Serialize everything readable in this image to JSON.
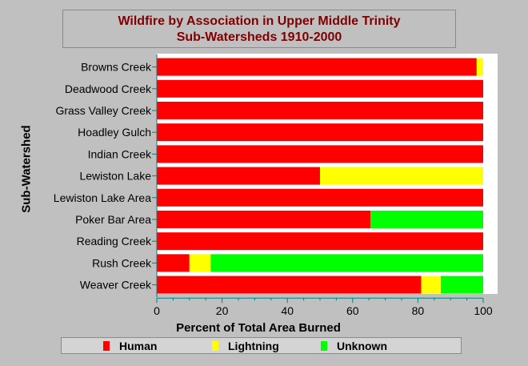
{
  "chart_data": {
    "type": "bar",
    "orientation": "horizontal",
    "stacked": true,
    "title": [
      "Wildfire by Association in Upper Middle Trinity",
      "Sub-Watersheds 1910-2000"
    ],
    "xlabel": "Percent of Total Area Burned",
    "ylabel": "Sub-Watershed",
    "xlim": [
      0,
      100
    ],
    "xticks": [
      "0",
      "20",
      "40",
      "60",
      "80",
      "100"
    ],
    "legend_position": "bottom",
    "categories": [
      "Browns Creek",
      "Deadwood Creek",
      "Grass Valley Creek",
      "Hoadley Gulch",
      "Indian Creek",
      "Lewiston Lake",
      "Lewiston Lake Area",
      "Poker Bar Area",
      "Reading Creek",
      "Rush Creek",
      "Weaver Creek"
    ],
    "series": [
      {
        "name": "Human",
        "color": "#ff0000",
        "values": [
          98,
          100,
          100,
          100,
          100,
          50,
          100,
          65.5,
          100,
          10,
          81
        ]
      },
      {
        "name": "Lightning",
        "color": "#ffff00",
        "values": [
          2,
          0,
          0,
          0,
          0,
          50,
          0,
          0,
          0,
          6.5,
          6
        ]
      },
      {
        "name": "Unknown",
        "color": "#00ff00",
        "values": [
          0,
          0,
          0,
          0,
          0,
          0,
          0,
          34.5,
          0,
          83.5,
          13
        ]
      }
    ]
  }
}
